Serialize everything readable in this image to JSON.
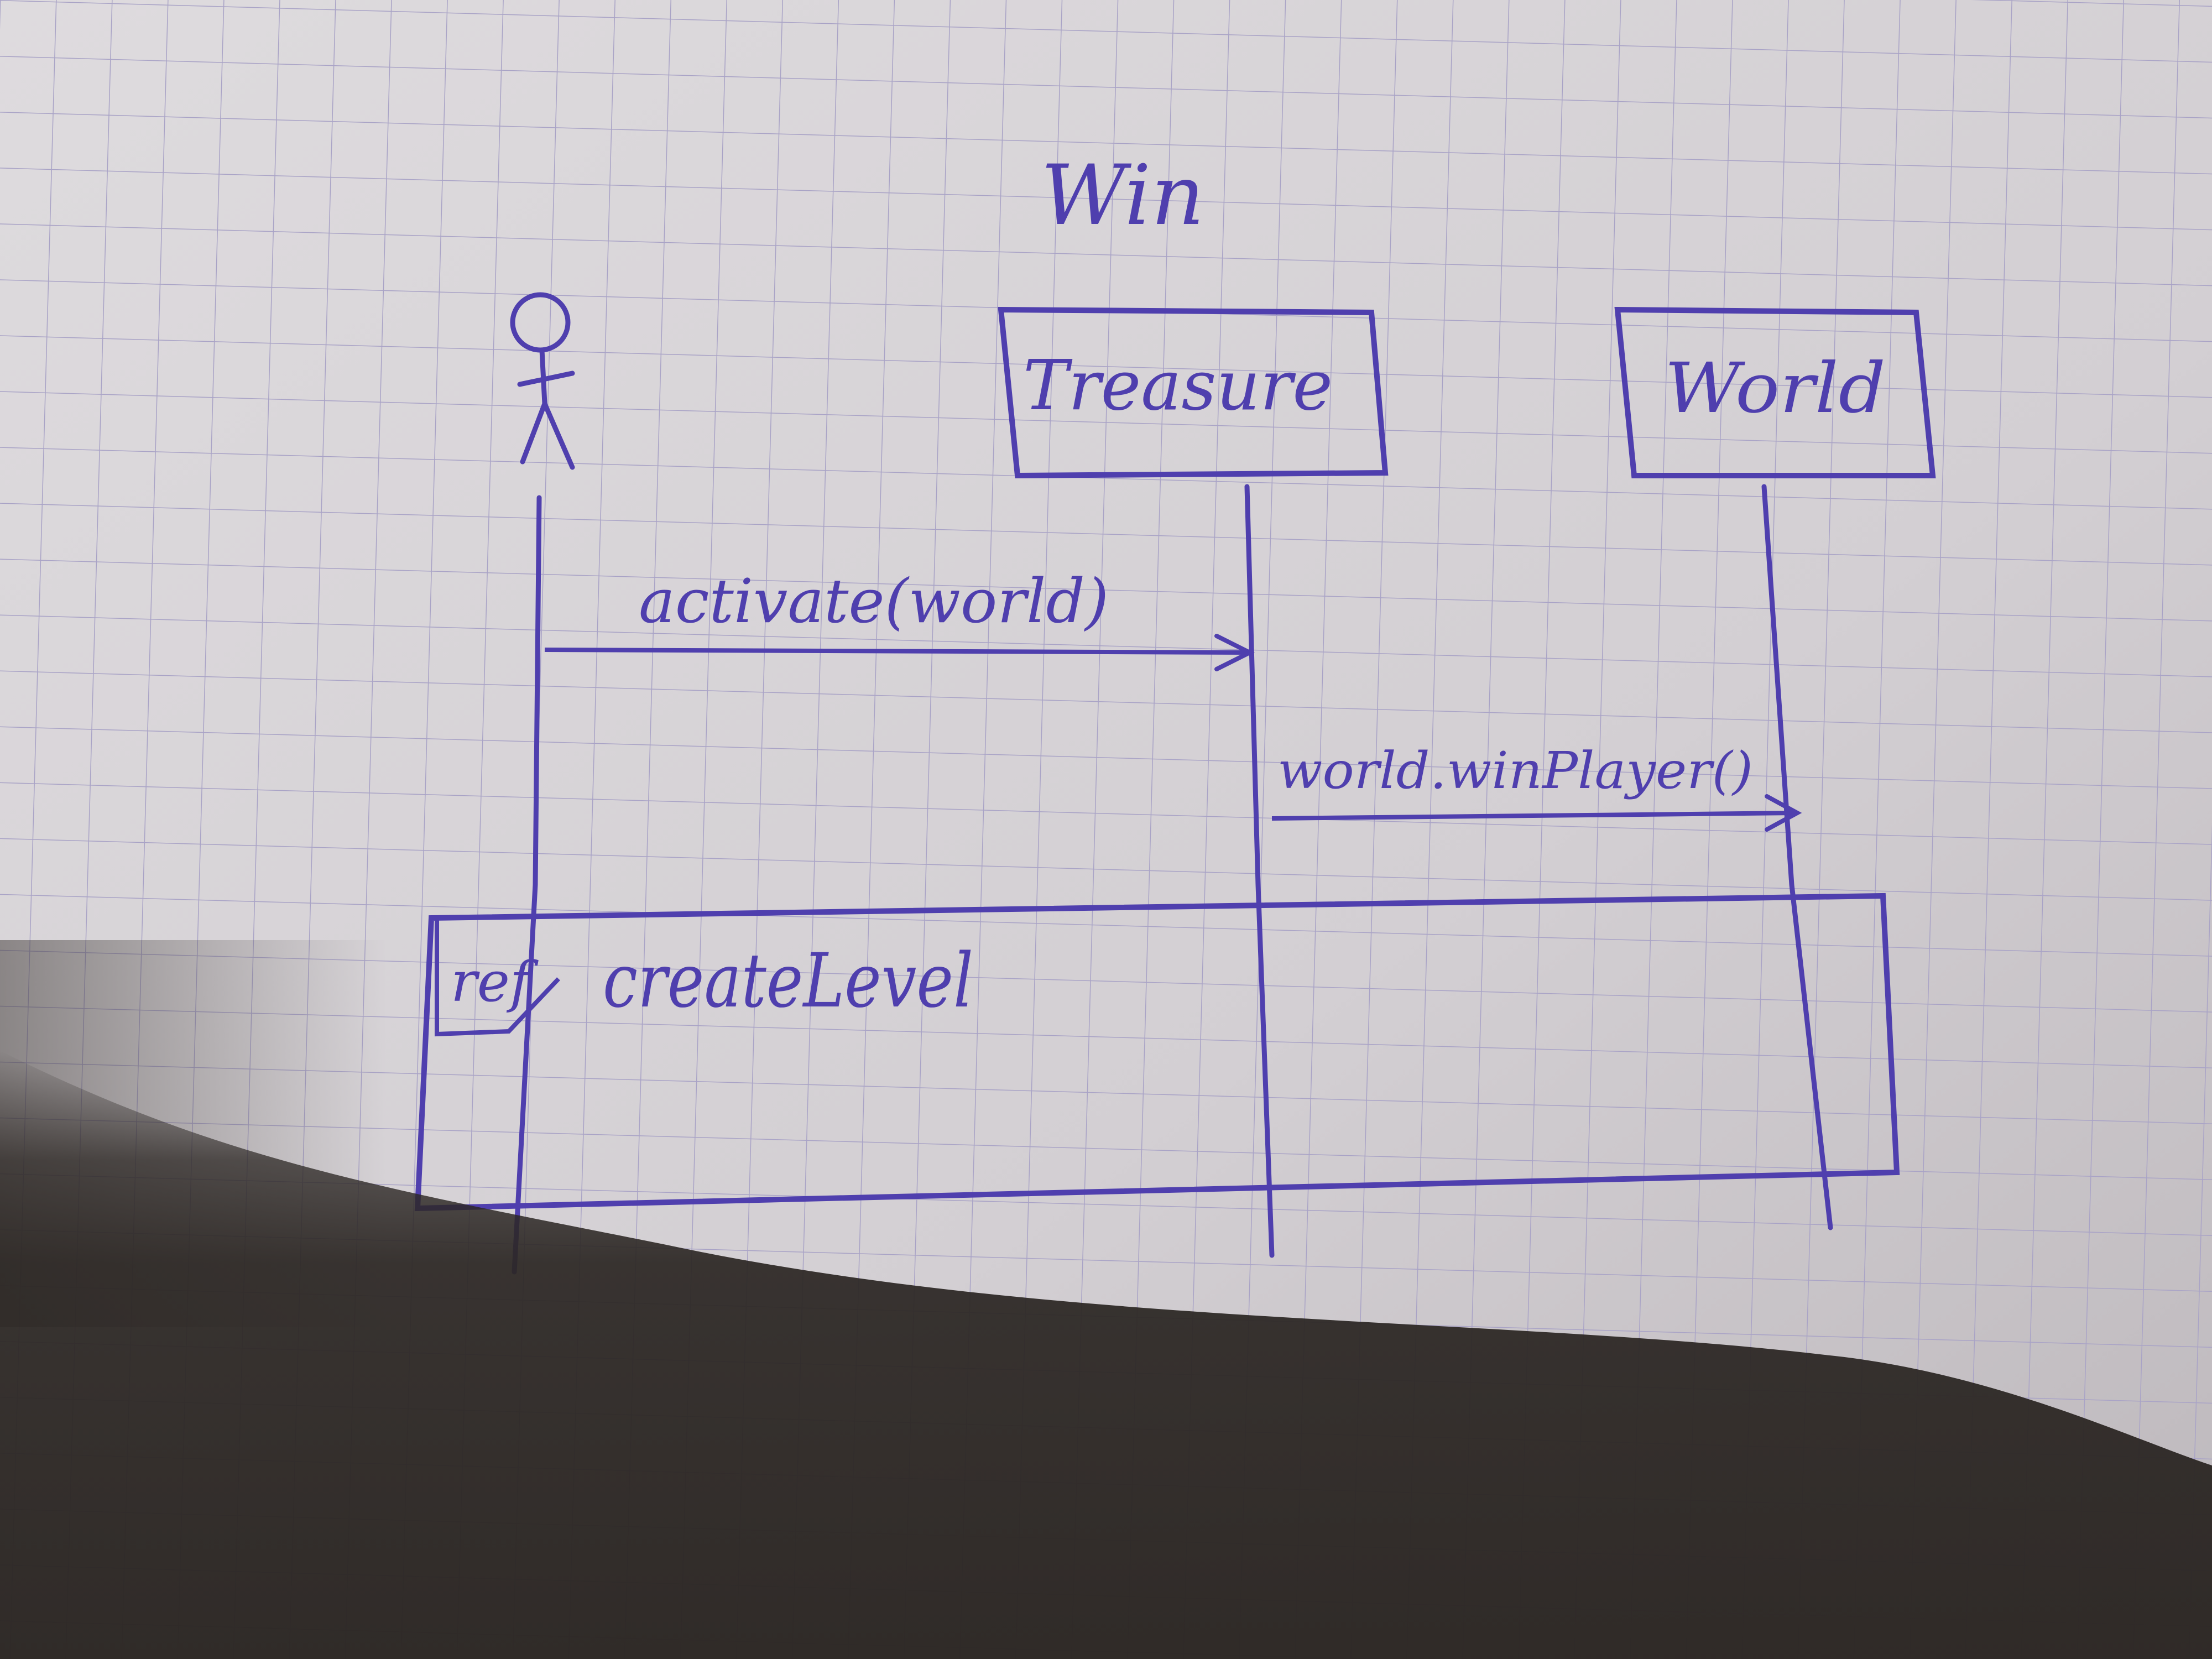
{
  "diagram": {
    "title": "Win",
    "participants": [
      {
        "id": "actor",
        "kind": "actor",
        "label": ""
      },
      {
        "id": "treasure",
        "kind": "object",
        "label": "Treasure"
      },
      {
        "id": "world",
        "kind": "object",
        "label": "World"
      }
    ],
    "messages": [
      {
        "from": "actor",
        "to": "treasure",
        "label": "activate(world)"
      },
      {
        "from": "treasure",
        "to": "world",
        "label": "world.winPlayer()"
      }
    ],
    "fragment": {
      "operator": "ref",
      "label": "createLevel"
    }
  },
  "colors": {
    "ink": "#4f3fae",
    "paper": "#d8d4d8",
    "grid": "#a9a3c6",
    "shadow": "#2c2724"
  }
}
